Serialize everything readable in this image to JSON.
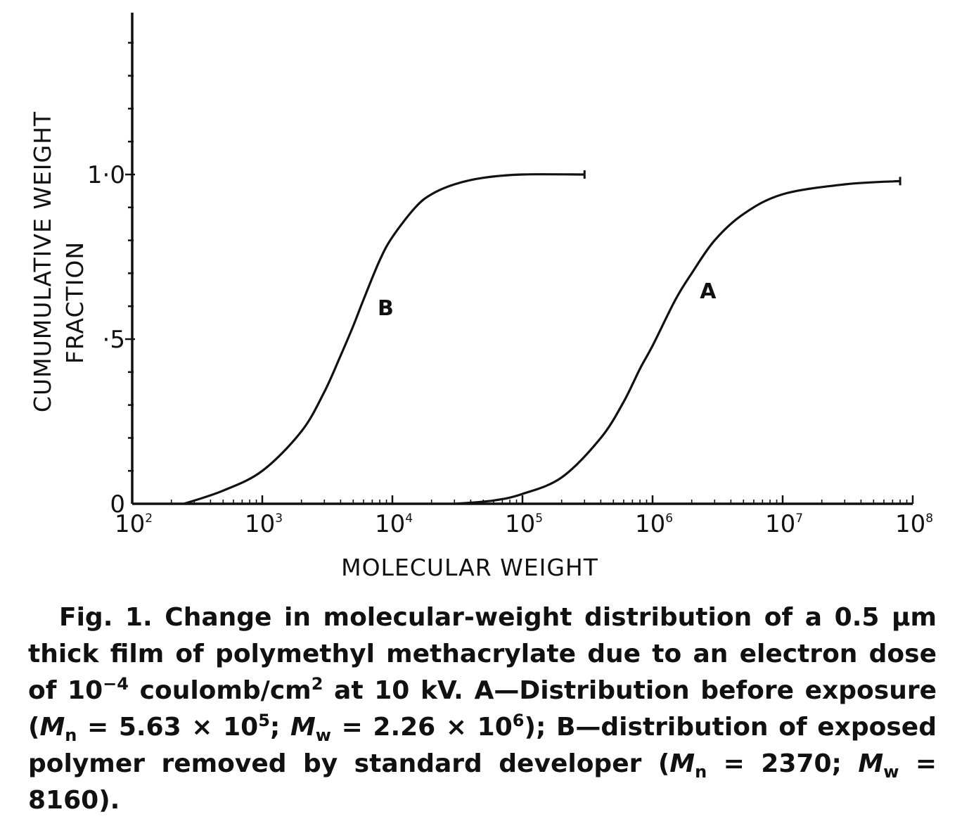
{
  "chart_data": {
    "type": "line",
    "xlabel": "MOLECULAR WEIGHT",
    "ylabel": [
      "CUMUMULATIVE WEIGHT",
      "FRACTION"
    ],
    "x_scale": "log",
    "xlim": [
      100,
      100000000
    ],
    "ylim": [
      0,
      1.0
    ],
    "x_tick_labels": [
      {
        "base": "10",
        "exp": "2"
      },
      {
        "base": "10",
        "exp": "3"
      },
      {
        "base": "10",
        "exp": "4"
      },
      {
        "base": "10",
        "exp": "5"
      },
      {
        "base": "10",
        "exp": "6"
      },
      {
        "base": "10",
        "exp": "7"
      },
      {
        "base": "10",
        "exp": "8"
      }
    ],
    "y_tick_labels": [
      "0",
      "·5",
      "1·0"
    ],
    "grid": false,
    "series": [
      {
        "name": "B",
        "x": [
          250,
          500,
          1000,
          2000,
          3000,
          4000,
          5000,
          6000,
          8000,
          10000,
          15000,
          20000,
          30000,
          50000,
          100000,
          300000
        ],
        "y": [
          0.0,
          0.04,
          0.1,
          0.22,
          0.34,
          0.45,
          0.54,
          0.62,
          0.74,
          0.81,
          0.9,
          0.94,
          0.97,
          0.99,
          1.0,
          1.0
        ]
      },
      {
        "name": "A",
        "x": [
          30000,
          60000,
          100000,
          200000,
          400000,
          600000,
          800000,
          1000000,
          1500000,
          2000000,
          3000000,
          5000000,
          10000000,
          30000000,
          80000000
        ],
        "y": [
          0.0,
          0.01,
          0.03,
          0.08,
          0.2,
          0.31,
          0.41,
          0.48,
          0.62,
          0.7,
          0.8,
          0.88,
          0.94,
          0.97,
          0.98
        ]
      }
    ]
  },
  "caption": {
    "fig": "Fig. 1.",
    "t1": " Change in molecular-weight distribution of a 0.5 μm thick film of polymethyl methacrylate due to an electron dose of 10",
    "t1_sup": "−4",
    "t2": " coulomb/cm",
    "t2_sup": "2",
    "t3": " at 10 kV. A—Distribution before exposure (",
    "mn1": "M",
    "mn1_sub": "n",
    "t4": " = 5.63 × 10",
    "t4_sup": "5",
    "t5": "; ",
    "mw1": "M",
    "mw1_sub": "w",
    "t6": " = 2.26 × 10",
    "t6_sup": "6",
    "t7": "); B—distribution of exposed polymer removed by standard developer (",
    "mn2": "M",
    "mn2_sub": "n",
    "t8": " = 2370; ",
    "mw2": "M",
    "mw2_sub": "w",
    "t9": " = 8160)."
  }
}
